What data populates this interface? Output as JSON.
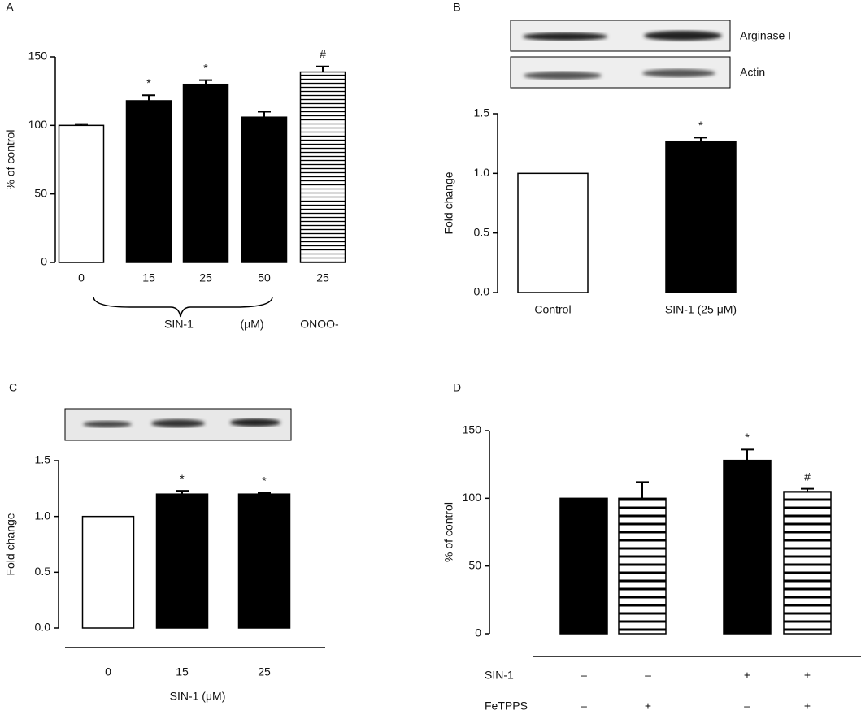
{
  "chart_data": [
    {
      "type": "bar",
      "panel_label": "A",
      "y_label": "% of control",
      "categories": [
        "0",
        "15",
        "25",
        "50",
        "25"
      ],
      "values": [
        100,
        118,
        130,
        106,
        139
      ],
      "errors": [
        1,
        4,
        3,
        4,
        4
      ],
      "bar_styles": [
        "open",
        "solid",
        "solid",
        "solid",
        "striped"
      ],
      "annotations": [
        null,
        "*",
        "*",
        null,
        "#"
      ],
      "group_labels": [
        "SIN-1",
        "(μM)",
        "ONOO-"
      ],
      "ylim": [
        0,
        150
      ],
      "yticks": [
        0,
        50,
        100,
        150
      ]
    },
    {
      "type": "bar",
      "panel_label": "B",
      "y_label": "Fold change",
      "blot_labels": [
        "Arginase I",
        "Actin"
      ],
      "categories": [
        "Control",
        "SIN-1 (25 μM)"
      ],
      "values": [
        1.0,
        1.27
      ],
      "errors": [
        0,
        0.03
      ],
      "bar_styles": [
        "open",
        "solid"
      ],
      "annotations": [
        null,
        "*"
      ],
      "ylim": [
        0,
        1.5
      ],
      "yticks": [
        {
          "value": 0,
          "label": "0.0"
        },
        {
          "value": 0.5,
          "label": "0.5"
        },
        {
          "value": 1,
          "label": "1.0"
        },
        {
          "value": 1.5,
          "label": "1.5"
        }
      ]
    },
    {
      "type": "bar",
      "panel_label": "C",
      "y_label": "Fold change",
      "x_label": "SIN-1 (μM)",
      "categories": [
        "0",
        "15",
        "25"
      ],
      "values": [
        1.0,
        1.2,
        1.2
      ],
      "errors": [
        0,
        0.03,
        0.01
      ],
      "bar_styles": [
        "open",
        "solid",
        "solid"
      ],
      "annotations": [
        null,
        "*",
        "*"
      ],
      "ylim": [
        0,
        1.5
      ],
      "yticks": [
        {
          "value": 0,
          "label": "0.0"
        },
        {
          "value": 0.5,
          "label": "0.5"
        },
        {
          "value": 1,
          "label": "1.0"
        },
        {
          "value": 1.5,
          "label": "1.5"
        }
      ]
    },
    {
      "type": "bar",
      "panel_label": "D",
      "y_label": "% of control",
      "values": [
        100,
        100,
        128,
        105
      ],
      "errors": [
        0,
        12,
        8,
        2
      ],
      "bar_styles": [
        "solid",
        "striped",
        "solid",
        "striped"
      ],
      "annotations": [
        null,
        null,
        "*",
        "#"
      ],
      "rows": [
        {
          "name": "SIN-1",
          "values": [
            "–",
            "–",
            "+",
            "+"
          ]
        },
        {
          "name": "FeTPPS",
          "values": [
            "–",
            "+",
            "–",
            "+"
          ]
        }
      ],
      "ylim": [
        0,
        150
      ],
      "yticks": [
        0,
        50,
        100,
        150
      ]
    }
  ]
}
